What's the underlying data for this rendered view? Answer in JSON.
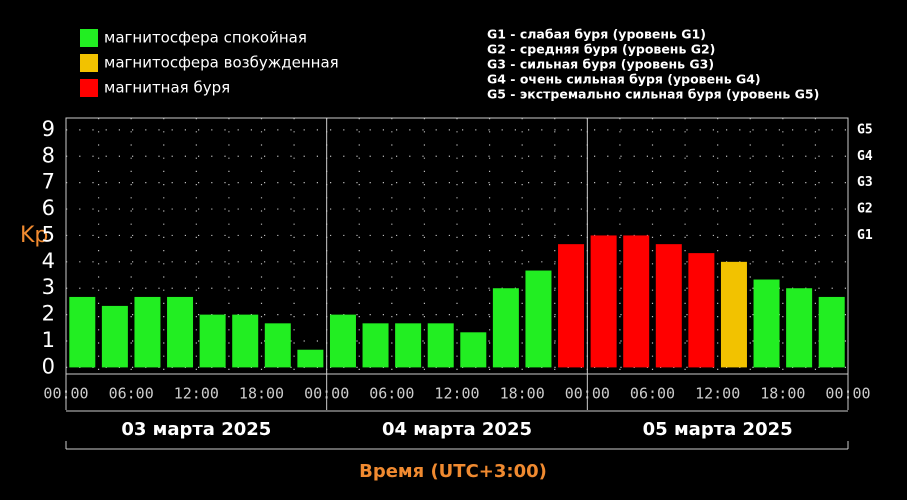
{
  "chart_data": {
    "type": "bar",
    "legend": [
      {
        "label": "магнитосфера спокойная",
        "color": "#22ee22"
      },
      {
        "label": "магнитосфера возбужденная",
        "color": "#f2c200"
      },
      {
        "label": "магнитная буря",
        "color": "#ff0000"
      }
    ],
    "storm_levels": [
      "G1 - слабая буря (уровень G1)",
      "G2 - средняя буря (уровень G2)",
      "G3 - сильная буря (уровень G3)",
      "G4 - очень сильная буря (уровень G4)",
      "G5 - экстремально сильная буря (уровень G5)"
    ],
    "ylabel": "Kp",
    "xlabel": "Время (UTC+3:00)",
    "values": [
      2.67,
      2.33,
      2.67,
      2.67,
      2,
      2,
      1.67,
      0.67,
      2,
      1.67,
      1.67,
      1.67,
      1.33,
      3,
      3.67,
      4.67,
      5,
      5,
      4.67,
      4.33,
      4,
      3.33,
      3,
      2.67
    ],
    "colors": [
      "#22ee22",
      "#22ee22",
      "#22ee22",
      "#22ee22",
      "#22ee22",
      "#22ee22",
      "#22ee22",
      "#22ee22",
      "#22ee22",
      "#22ee22",
      "#22ee22",
      "#22ee22",
      "#22ee22",
      "#22ee22",
      "#22ee22",
      "#ff0000",
      "#ff0000",
      "#ff0000",
      "#ff0000",
      "#ff0000",
      "#f2c200",
      "#22ee22",
      "#22ee22",
      "#22ee22"
    ],
    "ylim": [
      -0.25,
      9.45
    ],
    "yticks": [
      0,
      1,
      2,
      3,
      4,
      5,
      6,
      7,
      8,
      9
    ],
    "y2ticks": [
      {
        "value": 5,
        "label": "G1"
      },
      {
        "value": 6,
        "label": "G2"
      },
      {
        "value": 7,
        "label": "G3"
      },
      {
        "value": 8,
        "label": "G4"
      },
      {
        "value": 9,
        "label": "G5"
      }
    ],
    "xtick_labels": [
      "00:00",
      "06:00",
      "12:00",
      "18:00",
      "00:00",
      "06:00",
      "12:00",
      "18:00",
      "00:00",
      "06:00",
      "12:00",
      "18:00",
      "00:00"
    ],
    "days": [
      "03 марта 2025",
      "04 марта 2025",
      "05 марта 2025"
    ],
    "grid": true
  }
}
